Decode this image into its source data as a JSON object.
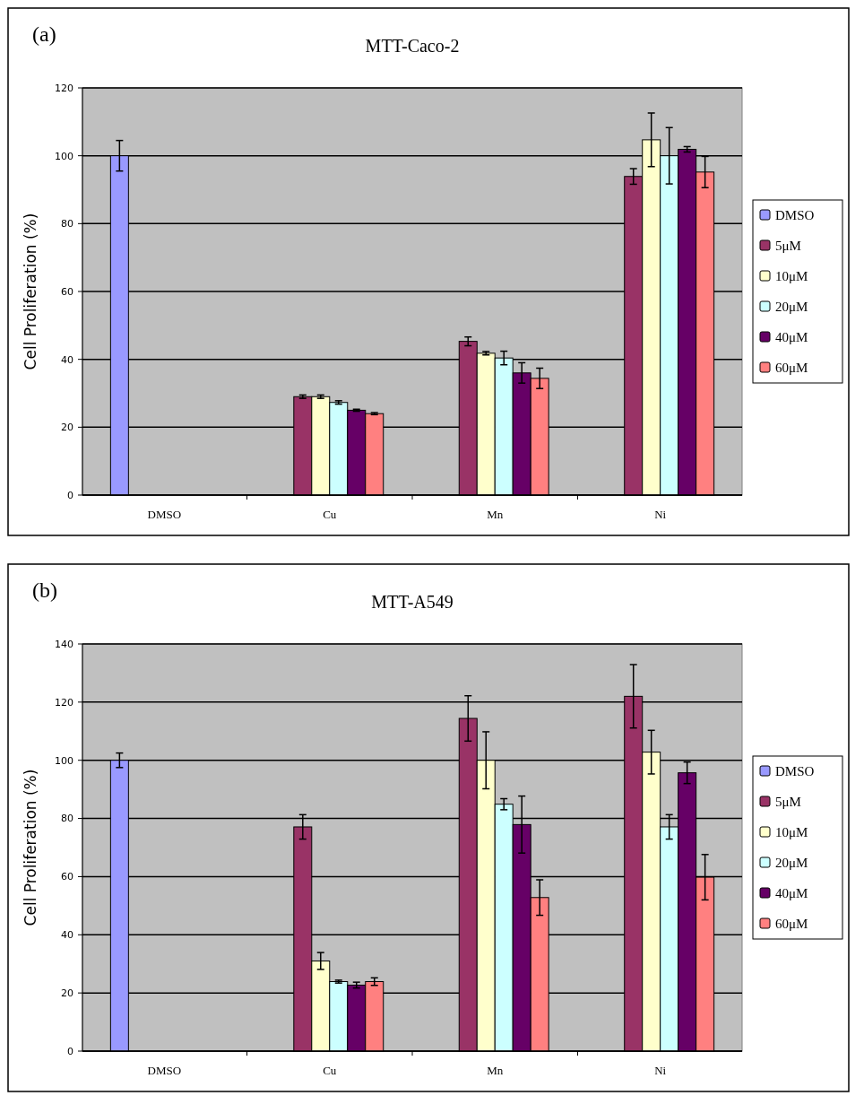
{
  "chart_data": [
    {
      "type": "bar",
      "title": "MTT-Caco-2",
      "ylabel": "Cell Proliferation (%)",
      "annotations": [
        "(a)"
      ],
      "categories": [
        "DMSO",
        "Cu",
        "Mn",
        "Ni"
      ],
      "ylim": [
        0,
        120
      ],
      "yticks": [
        0,
        20,
        40,
        60,
        80,
        100,
        120
      ],
      "grid": "y",
      "legend": "right",
      "series": [
        {
          "name": "DMSO",
          "color": "#9999ff",
          "values": [
            100,
            null,
            null,
            null
          ],
          "errors": [
            4.5,
            null,
            null,
            null
          ]
        },
        {
          "name": "5μM",
          "color": "#993366",
          "values": [
            null,
            29,
            45.3,
            93.9
          ],
          "errors": [
            null,
            0.5,
            1.3,
            2.3
          ]
        },
        {
          "name": "10μM",
          "color": "#ffffcc",
          "values": [
            null,
            29,
            41.8,
            104.7
          ],
          "errors": [
            null,
            0.5,
            0.5,
            7.9
          ]
        },
        {
          "name": "20μM",
          "color": "#ccffff",
          "values": [
            null,
            27.3,
            40.4,
            100
          ],
          "errors": [
            null,
            0.5,
            2,
            8.3
          ]
        },
        {
          "name": "40μM",
          "color": "#660066",
          "values": [
            null,
            25,
            36,
            101.9
          ],
          "errors": [
            null,
            0.3,
            3,
            0.8
          ]
        },
        {
          "name": "60μM",
          "color": "#ff8080",
          "values": [
            null,
            24,
            34.4,
            95.2
          ],
          "errors": [
            null,
            0.3,
            3,
            4.6
          ]
        }
      ]
    },
    {
      "type": "bar",
      "title": "MTT-A549",
      "ylabel": "Cell Proliferation (%)",
      "annotations": [
        "(b)"
      ],
      "categories": [
        "DMSO",
        "Cu",
        "Mn",
        "Ni"
      ],
      "ylim": [
        0,
        140
      ],
      "yticks": [
        0,
        20,
        40,
        60,
        80,
        100,
        120,
        140
      ],
      "grid": "y",
      "legend": "right",
      "series": [
        {
          "name": "DMSO",
          "color": "#9999ff",
          "values": [
            100,
            null,
            null,
            null
          ],
          "errors": [
            2.5,
            null,
            null,
            null
          ]
        },
        {
          "name": "5μM",
          "color": "#993366",
          "values": [
            null,
            77.1,
            114.4,
            122
          ],
          "errors": [
            null,
            4.2,
            7.8,
            10.9
          ]
        },
        {
          "name": "10μM",
          "color": "#ffffcc",
          "values": [
            null,
            31,
            100,
            102.8
          ],
          "errors": [
            null,
            2.9,
            9.8,
            7.5
          ]
        },
        {
          "name": "20μM",
          "color": "#ccffff",
          "values": [
            null,
            23.9,
            84.9,
            77.1
          ],
          "errors": [
            null,
            0.5,
            1.9,
            4.2
          ]
        },
        {
          "name": "40μM",
          "color": "#660066",
          "values": [
            null,
            22.7,
            77.9,
            95.7
          ],
          "errors": [
            null,
            1,
            9.8,
            3.7
          ]
        },
        {
          "name": "60μM",
          "color": "#ff8080",
          "values": [
            null,
            23.9,
            52.8,
            59.8
          ],
          "errors": [
            null,
            1.3,
            6.1,
            7.8
          ]
        }
      ]
    }
  ]
}
